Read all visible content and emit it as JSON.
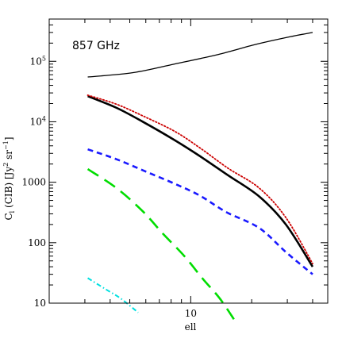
{
  "chart_data": {
    "type": "line",
    "panel_label": "857 GHz",
    "xlabel": "ell",
    "ylabel": {
      "main": "C",
      "sub": "l",
      "mid": " (CIB)  [Jy",
      "sup1": "2",
      "mid2": " sr",
      "sup2": "−1",
      "end": "]"
    },
    "x_scale": "log",
    "y_scale": "log",
    "xlim": [
      2.0,
      47.5
    ],
    "ylim": [
      10,
      500000
    ],
    "x_tick_labels": [
      {
        "value": 10,
        "label": "10"
      }
    ],
    "y_tick_labels": [
      {
        "value": 10,
        "label": "10"
      },
      {
        "value": 100,
        "label": "100"
      },
      {
        "value": 1000,
        "label": "1000"
      },
      {
        "value": 10000,
        "label": "10",
        "sup": "4"
      },
      {
        "value": 100000,
        "label": "10",
        "sup": "5"
      }
    ],
    "series": [
      {
        "color": "#000000",
        "style": "solid",
        "width": 1.3,
        "x": [
          3.1,
          5.2,
          8.3,
          13.7,
          20.9,
          31.0,
          40.0
        ],
        "y": [
          55000,
          65000,
          90000,
          130000,
          190000,
          255000,
          300000
        ]
      },
      {
        "color": "#000000",
        "style": "solid",
        "width": 2.6,
        "x": [
          3.1,
          4.3,
          5.8,
          8.3,
          11.1,
          15.3,
          21.8,
          29.5,
          40.0
        ],
        "y": [
          26500,
          17000,
          10000,
          5000,
          2700,
          1300,
          580,
          200,
          40
        ]
      },
      {
        "color": "#cc0000",
        "style": "dotted",
        "width": 1.8,
        "x": [
          3.1,
          4.3,
          5.8,
          8.3,
          11.1,
          15.3,
          21.8,
          29.5,
          40.0
        ],
        "y": [
          27500,
          19500,
          12500,
          7000,
          3700,
          1700,
          800,
          260,
          45
        ]
      },
      {
        "color": "#1a1aff",
        "style": "dashed",
        "width": 2.6,
        "x": [
          3.1,
          4.3,
          6.0,
          8.3,
          11.1,
          15.0,
          21.8,
          29.5,
          40.0
        ],
        "y": [
          3500,
          2400,
          1500,
          950,
          600,
          320,
          175,
          70,
          30
        ]
      },
      {
        "color": "#00dd00",
        "style": "longdash",
        "width": 2.6,
        "x": [
          3.1,
          4.3,
          5.8,
          7.3,
          9.3,
          11.5,
          13.9,
          16.6
        ],
        "y": [
          1650,
          800,
          330,
          140,
          60,
          25,
          12,
          5
        ]
      },
      {
        "color": "#00e0e0",
        "style": "dashdot",
        "width": 2.0,
        "x": [
          3.1,
          3.8,
          4.5,
          5.5
        ],
        "y": [
          26,
          17,
          12,
          7
        ]
      }
    ]
  }
}
